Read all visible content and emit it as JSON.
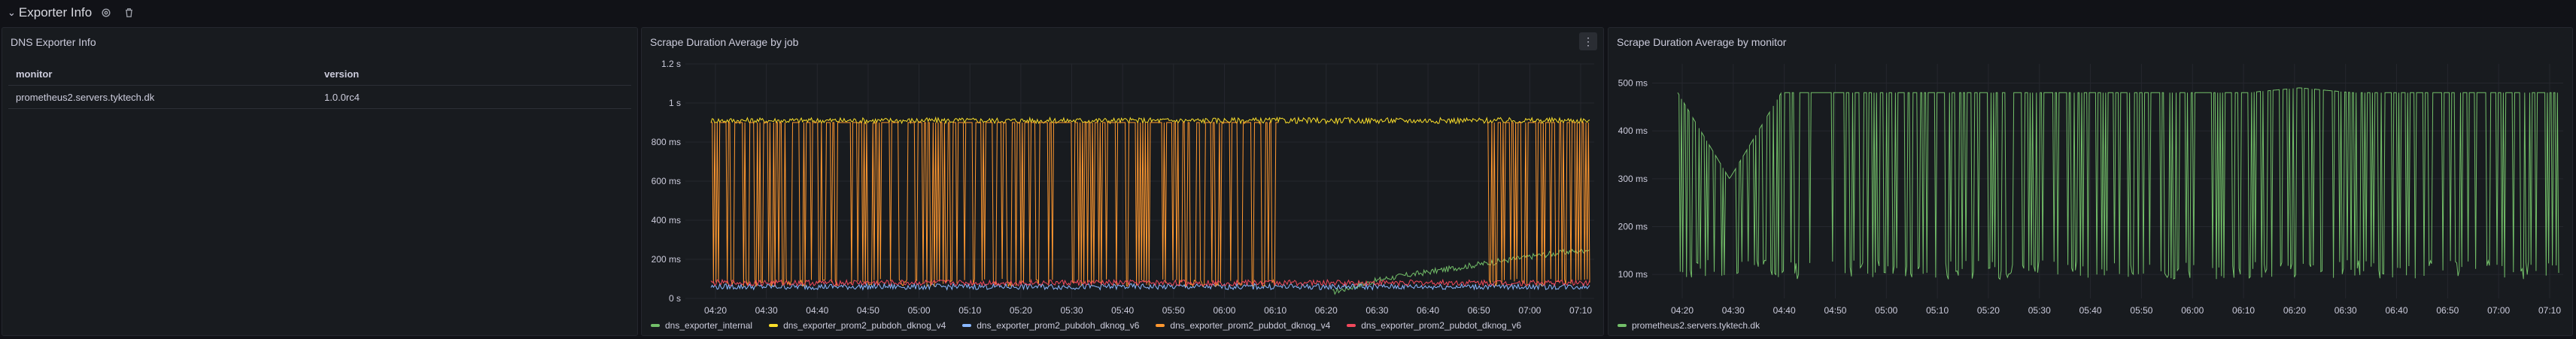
{
  "row": {
    "title": "Exporter Info",
    "chevron": "chevron-down-icon",
    "settings_icon": "gear-icon",
    "delete_icon": "trash-icon"
  },
  "panels": {
    "info": {
      "title": "DNS Exporter Info",
      "columns": [
        "monitor",
        "version"
      ],
      "rows": [
        [
          "prometheus2.servers.tyktech.dk",
          "1.0.0rc4"
        ]
      ]
    },
    "job": {
      "title": "Scrape Duration Average by job",
      "menu_icon": "kebab-menu-icon",
      "chart_data": {
        "type": "line",
        "x": [
          "04:20",
          "04:30",
          "04:40",
          "04:50",
          "05:00",
          "05:10",
          "05:20",
          "05:30",
          "05:40",
          "05:50",
          "06:00",
          "06:10",
          "06:20",
          "06:30",
          "06:40",
          "06:50",
          "07:00",
          "07:10"
        ],
        "ytick_labels": [
          "0 s",
          "200 ms",
          "400 ms",
          "600 ms",
          "800 ms",
          "1 s",
          "1.2 s"
        ],
        "ylim_ms": [
          0,
          1200
        ],
        "grid": true,
        "legend_position": "bottom",
        "series": [
          {
            "name": "dns_exporter_internal",
            "color": "#73bf69",
            "values_ms": [
              null,
              null,
              null,
              null,
              null,
              null,
              null,
              null,
              null,
              null,
              null,
              null,
              30,
              100,
              140,
              180,
              220,
              250
            ]
          },
          {
            "name": "dns_exporter_prom2_pubdoh_dknog_v4",
            "color": "#fade2a",
            "values_ms": [
              910,
              910,
              910,
              910,
              910,
              910,
              910,
              910,
              910,
              910,
              910,
              910,
              910,
              910,
              910,
              910,
              910,
              910
            ]
          },
          {
            "name": "dns_exporter_prom2_pubdoh_dknog_v6",
            "color": "#8ab8ff",
            "values_ms": [
              60,
              60,
              60,
              60,
              60,
              60,
              60,
              60,
              60,
              60,
              60,
              60,
              60,
              60,
              60,
              60,
              60,
              60
            ]
          },
          {
            "name": "dns_exporter_prom2_pubdot_dknog_v4",
            "color": "#ff9830",
            "values_ms": [
              900,
              900,
              900,
              900,
              900,
              900,
              900,
              900,
              900,
              900,
              900,
              900,
              null,
              null,
              null,
              900,
              900,
              900
            ]
          },
          {
            "name": "dns_exporter_prom2_pubdot_dknog_v6",
            "color": "#f2495c",
            "values_ms": [
              80,
              80,
              80,
              80,
              80,
              80,
              80,
              80,
              80,
              80,
              80,
              80,
              80,
              80,
              80,
              80,
              80,
              80
            ]
          }
        ]
      }
    },
    "monitor": {
      "title": "Scrape Duration Average by monitor",
      "chart_data": {
        "type": "line",
        "x": [
          "04:20",
          "04:30",
          "04:40",
          "04:50",
          "05:00",
          "05:10",
          "05:20",
          "05:30",
          "05:40",
          "05:50",
          "06:00",
          "06:10",
          "06:20",
          "06:30",
          "06:40",
          "06:50",
          "07:00",
          "07:10"
        ],
        "ytick_labels": [
          "100 ms",
          "200 ms",
          "300 ms",
          "400 ms",
          "500 ms"
        ],
        "ylim_ms": [
          50,
          540
        ],
        "grid": true,
        "legend_position": "bottom",
        "series": [
          {
            "name": "prometheus2.servers.tyktech.dk",
            "color": "#73bf69",
            "values_ms": [
              480,
              300,
              480,
              480,
              480,
              480,
              480,
              480,
              480,
              480,
              480,
              480,
              490,
              480,
              480,
              480,
              480,
              480
            ]
          }
        ]
      }
    }
  }
}
